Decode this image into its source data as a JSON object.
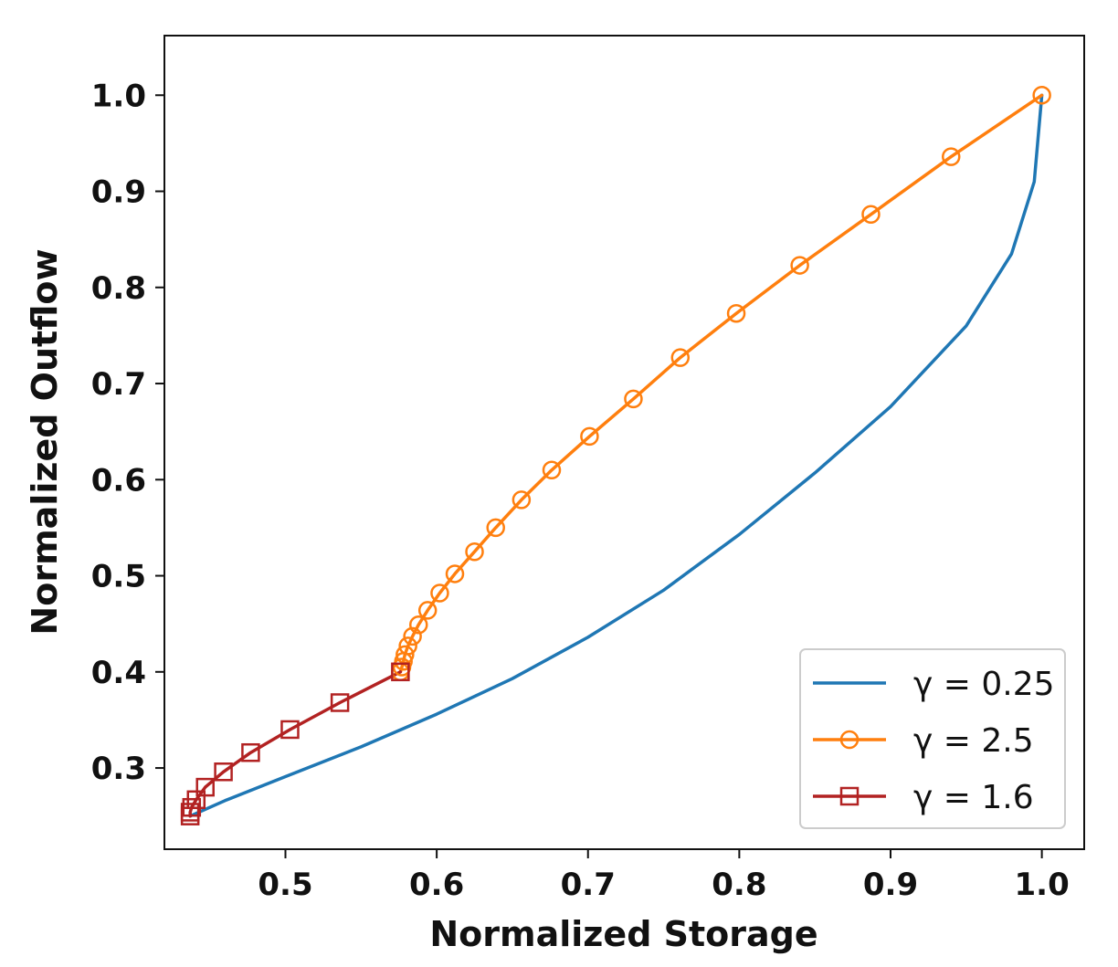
{
  "chart_data": {
    "type": "line",
    "xlabel": "Normalized Storage",
    "ylabel": "Normalized Outflow",
    "xlim": [
      0.42,
      1.028
    ],
    "ylim": [
      0.2155,
      1.062
    ],
    "xticks": [
      {
        "value": 0.5,
        "label": "0.5"
      },
      {
        "value": 0.6,
        "label": "0.6"
      },
      {
        "value": 0.7,
        "label": "0.7"
      },
      {
        "value": 0.8,
        "label": "0.8"
      },
      {
        "value": 0.9,
        "label": "0.9"
      },
      {
        "value": 1.0,
        "label": "1.0"
      }
    ],
    "yticks": [
      {
        "value": 0.3,
        "label": "0.3"
      },
      {
        "value": 0.4,
        "label": "0.4"
      },
      {
        "value": 0.5,
        "label": "0.5"
      },
      {
        "value": 0.6,
        "label": "0.6"
      },
      {
        "value": 0.7,
        "label": "0.7"
      },
      {
        "value": 0.8,
        "label": "0.8"
      },
      {
        "value": 0.9,
        "label": "0.9"
      },
      {
        "value": 1.0,
        "label": "1.0"
      }
    ],
    "grid": false,
    "legend_position": "bottom-right",
    "series": [
      {
        "name": "γ = 0.25",
        "color": "#1f77b4",
        "marker": "none",
        "x": [
          0.437,
          0.46,
          0.5,
          0.55,
          0.6,
          0.65,
          0.7,
          0.75,
          0.8,
          0.85,
          0.9,
          0.95,
          0.98,
          0.995,
          1.0
        ],
        "y": [
          0.25,
          0.266,
          0.291,
          0.322,
          0.356,
          0.393,
          0.436,
          0.485,
          0.543,
          0.607,
          0.676,
          0.76,
          0.835,
          0.91,
          1.0
        ]
      },
      {
        "name": "γ = 2.5",
        "color": "#ff7f0e",
        "marker": "circle",
        "x": [
          0.576,
          0.577,
          0.578,
          0.579,
          0.581,
          0.584,
          0.588,
          0.594,
          0.602,
          0.612,
          0.625,
          0.639,
          0.656,
          0.676,
          0.701,
          0.73,
          0.761,
          0.798,
          0.84,
          0.887,
          0.94,
          1.0
        ],
        "y": [
          0.4,
          0.405,
          0.411,
          0.418,
          0.427,
          0.437,
          0.449,
          0.464,
          0.482,
          0.502,
          0.525,
          0.55,
          0.579,
          0.61,
          0.645,
          0.684,
          0.727,
          0.773,
          0.823,
          0.876,
          0.936,
          1.0
        ]
      },
      {
        "name": "γ = 1.6",
        "color": "#b22222",
        "marker": "square",
        "x": [
          0.437,
          0.437,
          0.438,
          0.441,
          0.447,
          0.459,
          0.477,
          0.503,
          0.536,
          0.576
        ],
        "y": [
          0.25,
          0.254,
          0.259,
          0.267,
          0.28,
          0.296,
          0.316,
          0.34,
          0.368,
          0.4
        ]
      }
    ]
  }
}
